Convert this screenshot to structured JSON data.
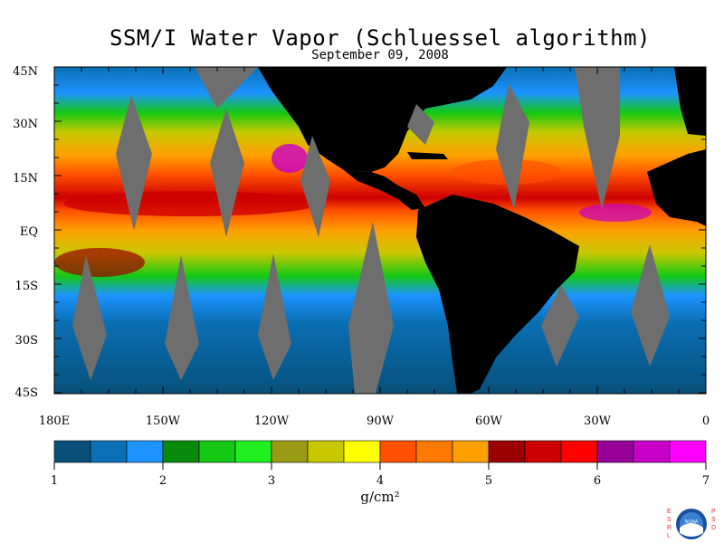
{
  "title": "SSM/I Water Vapor (Schluessel algorithm)",
  "date": "September 09, 2008",
  "lat_labels": [
    "45N",
    "30N",
    "15N",
    "EQ",
    "15S",
    "30S",
    "45S"
  ],
  "lon_labels": [
    "180E",
    "150W",
    "120W",
    "90W",
    "60W",
    "30W",
    "0"
  ],
  "colorbar": {
    "ticks": [
      "1",
      "2",
      "3",
      "4",
      "5",
      "6",
      "7"
    ],
    "unit": "g/cm²",
    "colors": [
      "#08507a",
      "#0a6fb4",
      "#1c93ff",
      "#0a8a0a",
      "#14c814",
      "#20f020",
      "#9a9a14",
      "#c8c800",
      "#ffff00",
      "#ff5000",
      "#ff7800",
      "#ffa000",
      "#9a0000",
      "#cd0000",
      "#ff0000",
      "#960096",
      "#c800c8",
      "#ff00ff"
    ]
  },
  "logo": {
    "left": "ESRL",
    "right": "PSD",
    "center": "NOAA"
  },
  "colors": {
    "land": "#000000",
    "no_data": "#6e6e6e",
    "ocean_low": "#08507a"
  }
}
